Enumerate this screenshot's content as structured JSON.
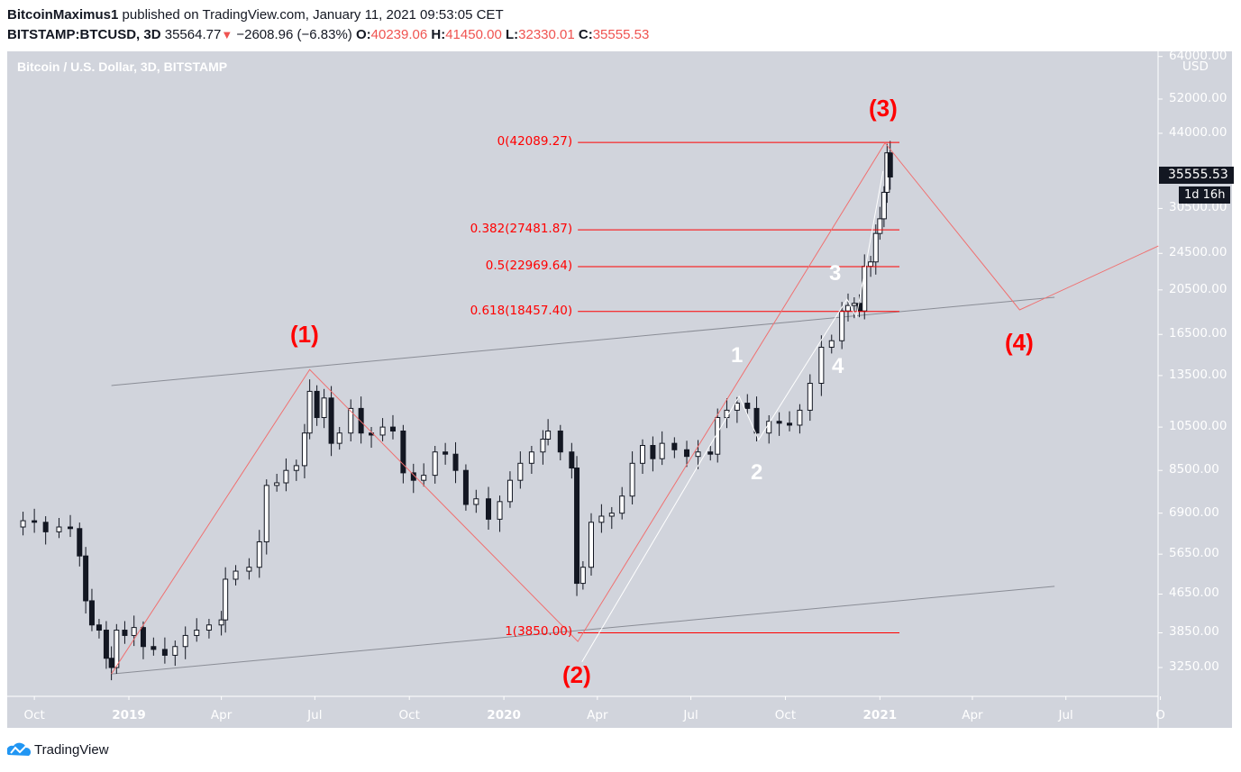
{
  "header": {
    "author": "BitcoinMaximus1",
    "published": "published on TradingView.com, January 11, 2021 09:53:05 CET",
    "symbol": "BITSTAMP:BTCUSD, 3D",
    "last": "35564.77",
    "change": "−2608.96 (−6.83%)",
    "o_label": "O:",
    "o": "40239.06",
    "h_label": "H:",
    "h": "41450.00",
    "l_label": "L:",
    "l": "32330.01",
    "c_label": "C:",
    "c": "35555.53",
    "down_icon": "▼"
  },
  "colors": {
    "background": "#d1d4dc",
    "wave": "#f07070",
    "fib": "#ff0000",
    "channel": "#8a8d96",
    "subwave": "#ffffff",
    "down": "#ef5350"
  },
  "chart_data": {
    "type": "candlestick",
    "title": "Bitcoin / U.S. Dollar, 3D, BITSTAMP",
    "y_scale": "log",
    "currency": "USD",
    "ylim": [
      3000,
      64000
    ],
    "y_ticks": [
      "64000.00",
      "52000.00",
      "44000.00",
      "30500.00",
      "24500.00",
      "20500.00",
      "16500.00",
      "13500.00",
      "10500.00",
      "8500.00",
      "6900.00",
      "5650.00",
      "4650.00",
      "3850.00",
      "3250.00"
    ],
    "x_ticks": [
      {
        "label": "Oct",
        "date": "2018-10-01"
      },
      {
        "label": "2019",
        "date": "2019-01-01",
        "year": true
      },
      {
        "label": "Apr",
        "date": "2019-04-01"
      },
      {
        "label": "Jul",
        "date": "2019-07-01"
      },
      {
        "label": "Oct",
        "date": "2019-10-01"
      },
      {
        "label": "2020",
        "date": "2020-01-01",
        "year": true
      },
      {
        "label": "Apr",
        "date": "2020-04-01"
      },
      {
        "label": "Jul",
        "date": "2020-07-01"
      },
      {
        "label": "Oct",
        "date": "2020-10-01"
      },
      {
        "label": "2021",
        "date": "2021-01-01",
        "year": true
      },
      {
        "label": "Apr",
        "date": "2021-04-01"
      },
      {
        "label": "Jul",
        "date": "2021-07-01"
      },
      {
        "label": "O",
        "date": "2021-10-01"
      }
    ],
    "closes": [
      [
        "2018-09-10",
        6450
      ],
      [
        "2018-09-20",
        6650
      ],
      [
        "2018-10-01",
        6600
      ],
      [
        "2018-10-12",
        6300
      ],
      [
        "2018-10-25",
        6450
      ],
      [
        "2018-11-05",
        6400
      ],
      [
        "2018-11-14",
        5600
      ],
      [
        "2018-11-20",
        4500
      ],
      [
        "2018-11-26",
        4000
      ],
      [
        "2018-12-03",
        3900
      ],
      [
        "2018-12-10",
        3400
      ],
      [
        "2018-12-15",
        3250
      ],
      [
        "2018-12-20",
        3900
      ],
      [
        "2018-12-28",
        3800
      ],
      [
        "2019-01-06",
        3950
      ],
      [
        "2019-01-15",
        3600
      ],
      [
        "2019-01-25",
        3550
      ],
      [
        "2019-02-05",
        3450
      ],
      [
        "2019-02-15",
        3600
      ],
      [
        "2019-02-25",
        3800
      ],
      [
        "2019-03-08",
        3900
      ],
      [
        "2019-03-20",
        4000
      ],
      [
        "2019-04-01",
        4100
      ],
      [
        "2019-04-05",
        5000
      ],
      [
        "2019-04-15",
        5200
      ],
      [
        "2019-04-28",
        5300
      ],
      [
        "2019-05-08",
        6000
      ],
      [
        "2019-05-15",
        7900
      ],
      [
        "2019-05-25",
        8000
      ],
      [
        "2019-06-03",
        8500
      ],
      [
        "2019-06-13",
        8700
      ],
      [
        "2019-06-21",
        10200
      ],
      [
        "2019-06-26",
        12500
      ],
      [
        "2019-07-03",
        11000
      ],
      [
        "2019-07-10",
        12100
      ],
      [
        "2019-07-17",
        9700
      ],
      [
        "2019-07-25",
        10200
      ],
      [
        "2019-08-05",
        11500
      ],
      [
        "2019-08-15",
        10200
      ],
      [
        "2019-08-25",
        10100
      ],
      [
        "2019-09-05",
        10500
      ],
      [
        "2019-09-15",
        10300
      ],
      [
        "2019-09-25",
        8400
      ],
      [
        "2019-10-05",
        8100
      ],
      [
        "2019-10-15",
        8300
      ],
      [
        "2019-10-26",
        9300
      ],
      [
        "2019-11-05",
        9200
      ],
      [
        "2019-11-15",
        8500
      ],
      [
        "2019-11-25",
        7200
      ],
      [
        "2019-12-05",
        7400
      ],
      [
        "2019-12-17",
        6700
      ],
      [
        "2019-12-28",
        7300
      ],
      [
        "2020-01-07",
        8100
      ],
      [
        "2020-01-17",
        8800
      ],
      [
        "2020-01-28",
        9300
      ],
      [
        "2020-02-08",
        9900
      ],
      [
        "2020-02-13",
        10300
      ],
      [
        "2020-02-25",
        9300
      ],
      [
        "2020-03-07",
        8600
      ],
      [
        "2020-03-12",
        4900
      ],
      [
        "2020-03-18",
        5300
      ],
      [
        "2020-03-26",
        6600
      ],
      [
        "2020-04-05",
        6800
      ],
      [
        "2020-04-15",
        6900
      ],
      [
        "2020-04-25",
        7500
      ],
      [
        "2020-05-05",
        8800
      ],
      [
        "2020-05-15",
        9600
      ],
      [
        "2020-05-25",
        9000
      ],
      [
        "2020-06-03",
        9700
      ],
      [
        "2020-06-15",
        9400
      ],
      [
        "2020-06-27",
        9100
      ],
      [
        "2020-07-08",
        9300
      ],
      [
        "2020-07-20",
        9200
      ],
      [
        "2020-07-27",
        11000
      ],
      [
        "2020-08-05",
        11400
      ],
      [
        "2020-08-15",
        11800
      ],
      [
        "2020-08-25",
        11500
      ],
      [
        "2020-09-03",
        10200
      ],
      [
        "2020-09-15",
        10800
      ],
      [
        "2020-09-25",
        10700
      ],
      [
        "2020-10-05",
        10600
      ],
      [
        "2020-10-15",
        11400
      ],
      [
        "2020-10-25",
        13000
      ],
      [
        "2020-11-05",
        15500
      ],
      [
        "2020-11-15",
        16000
      ],
      [
        "2020-11-25",
        18500
      ],
      [
        "2020-12-01",
        19000
      ],
      [
        "2020-12-07",
        19200
      ],
      [
        "2020-12-12",
        18500
      ],
      [
        "2020-12-17",
        23000
      ],
      [
        "2020-12-23",
        23500
      ],
      [
        "2020-12-28",
        27000
      ],
      [
        "2021-01-01",
        29000
      ],
      [
        "2021-01-05",
        33000
      ],
      [
        "2021-01-08",
        40000
      ],
      [
        "2021-01-11",
        35555.53
      ]
    ],
    "fib_levels": [
      {
        "label": "0(42089.27)",
        "price": 42089.27
      },
      {
        "label": "0.382(27481.87)",
        "price": 27481.87
      },
      {
        "label": "0.5(22969.64)",
        "price": 22969.64
      },
      {
        "label": "0.618(18457.40)",
        "price": 18457.4
      },
      {
        "label": "1(3850.00)",
        "price": 3850.0
      }
    ],
    "fib_range": [
      "2020-03-13",
      "2021-01-20"
    ],
    "wave_path": [
      [
        "2018-12-15",
        3150
      ],
      [
        "2019-06-26",
        13900
      ],
      [
        "2020-03-13",
        3690
      ],
      [
        "2021-01-06",
        42000
      ],
      [
        "2021-05-17",
        18600
      ],
      [
        "2021-09-29",
        25400
      ]
    ],
    "subwave_path": [
      [
        "2020-03-17",
        3340
      ],
      [
        "2020-08-17",
        12200
      ],
      [
        "2020-09-05",
        9870
      ],
      [
        "2020-11-30",
        19600
      ],
      [
        "2020-12-09",
        17960
      ],
      [
        "2021-01-04",
        36600
      ]
    ],
    "channel_top": [
      [
        "2018-12-15",
        12860
      ],
      [
        "2021-06-20",
        19780
      ]
    ],
    "channel_bottom": [
      [
        "2018-12-15",
        3150
      ],
      [
        "2021-06-20",
        4830
      ]
    ],
    "wave_labels": [
      "(1)",
      "(2)",
      "(3)",
      "(4)"
    ],
    "subwave_labels": [
      "1",
      "2",
      "3",
      "4"
    ],
    "current_price": "35555.53",
    "countdown": "1d 16h"
  },
  "footer": {
    "brand": "TradingView"
  }
}
